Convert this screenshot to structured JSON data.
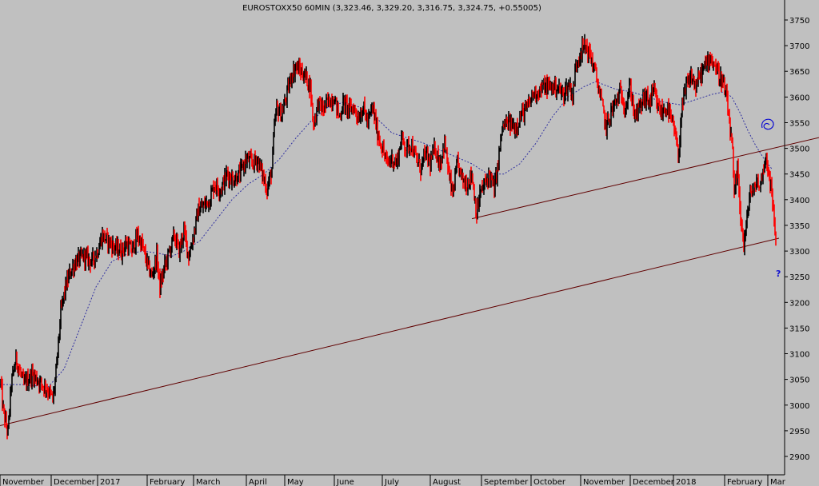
{
  "chart_data": {
    "type": "candlestick",
    "title": "EUROSTOXX50 60MIN (3,323.46, 3,329.20, 3,316.75, 3,324.75, +0.55005)",
    "colors": {
      "background": "#c0c0c0",
      "up_candle": "#000000",
      "down_candle": "#ff0000",
      "moving_average": "#3030a0",
      "trendline": "#600000",
      "annotation": "#1010d0",
      "axis": "#000000"
    },
    "y_axis": {
      "position": "right",
      "ylim": [
        2870,
        3775
      ],
      "ticks": [
        2900,
        2950,
        3000,
        3050,
        3100,
        3150,
        3200,
        3250,
        3300,
        3350,
        3400,
        3450,
        3500,
        3550,
        3600,
        3650,
        3700,
        3750
      ]
    },
    "x_axis": {
      "labels": [
        "November",
        "December",
        "2017",
        "February",
        "March",
        "April",
        "May",
        "June",
        "July",
        "August",
        "September",
        "October",
        "November",
        "December",
        "2018",
        "February",
        "Mar"
      ]
    },
    "anchors": [
      [
        0,
        3060
      ],
      [
        4,
        2990
      ],
      [
        10,
        2945
      ],
      [
        14,
        3040
      ],
      [
        20,
        3090
      ],
      [
        30,
        3040
      ],
      [
        40,
        3060
      ],
      [
        50,
        3045
      ],
      [
        60,
        3030
      ],
      [
        66,
        3010
      ],
      [
        70,
        3060
      ],
      [
        76,
        3180
      ],
      [
        82,
        3230
      ],
      [
        88,
        3260
      ],
      [
        95,
        3280
      ],
      [
        105,
        3290
      ],
      [
        115,
        3280
      ],
      [
        122,
        3300
      ],
      [
        128,
        3330
      ],
      [
        135,
        3320
      ],
      [
        145,
        3305
      ],
      [
        152,
        3300
      ],
      [
        158,
        3315
      ],
      [
        165,
        3300
      ],
      [
        172,
        3330
      ],
      [
        178,
        3310
      ],
      [
        185,
        3270
      ],
      [
        190,
        3250
      ],
      [
        196,
        3290
      ],
      [
        200,
        3230
      ],
      [
        206,
        3270
      ],
      [
        212,
        3300
      ],
      [
        218,
        3330
      ],
      [
        224,
        3300
      ],
      [
        230,
        3340
      ],
      [
        236,
        3290
      ],
      [
        242,
        3330
      ],
      [
        248,
        3380
      ],
      [
        256,
        3390
      ],
      [
        262,
        3400
      ],
      [
        268,
        3430
      ],
      [
        276,
        3420
      ],
      [
        284,
        3450
      ],
      [
        292,
        3440
      ],
      [
        300,
        3450
      ],
      [
        308,
        3480
      ],
      [
        316,
        3470
      ],
      [
        322,
        3480
      ],
      [
        328,
        3450
      ],
      [
        334,
        3420
      ],
      [
        340,
        3460
      ],
      [
        343,
        3540
      ],
      [
        346,
        3580
      ],
      [
        352,
        3565
      ],
      [
        358,
        3600
      ],
      [
        364,
        3640
      ],
      [
        370,
        3660
      ],
      [
        376,
        3650
      ],
      [
        382,
        3640
      ],
      [
        388,
        3620
      ],
      [
        392,
        3545
      ],
      [
        398,
        3590
      ],
      [
        404,
        3575
      ],
      [
        410,
        3590
      ],
      [
        418,
        3600
      ],
      [
        424,
        3560
      ],
      [
        430,
        3590
      ],
      [
        436,
        3575
      ],
      [
        442,
        3580
      ],
      [
        448,
        3560
      ],
      [
        454,
        3580
      ],
      [
        460,
        3550
      ],
      [
        466,
        3580
      ],
      [
        472,
        3530
      ],
      [
        478,
        3500
      ],
      [
        484,
        3470
      ],
      [
        490,
        3480
      ],
      [
        496,
        3470
      ],
      [
        502,
        3520
      ],
      [
        508,
        3500
      ],
      [
        514,
        3510
      ],
      [
        520,
        3480
      ],
      [
        526,
        3460
      ],
      [
        532,
        3490
      ],
      [
        538,
        3470
      ],
      [
        544,
        3500
      ],
      [
        550,
        3470
      ],
      [
        556,
        3510
      ],
      [
        562,
        3440
      ],
      [
        566,
        3410
      ],
      [
        572,
        3470
      ],
      [
        578,
        3440
      ],
      [
        584,
        3430
      ],
      [
        590,
        3450
      ],
      [
        596,
        3370
      ],
      [
        600,
        3410
      ],
      [
        606,
        3430
      ],
      [
        612,
        3450
      ],
      [
        618,
        3420
      ],
      [
        622,
        3460
      ],
      [
        628,
        3540
      ],
      [
        636,
        3550
      ],
      [
        644,
        3540
      ],
      [
        652,
        3565
      ],
      [
        660,
        3580
      ],
      [
        666,
        3605
      ],
      [
        672,
        3610
      ],
      [
        680,
        3620
      ],
      [
        688,
        3620
      ],
      [
        696,
        3620
      ],
      [
        704,
        3605
      ],
      [
        712,
        3625
      ],
      [
        716,
        3600
      ],
      [
        720,
        3660
      ],
      [
        726,
        3690
      ],
      [
        732,
        3700
      ],
      [
        738,
        3680
      ],
      [
        744,
        3650
      ],
      [
        748,
        3620
      ],
      [
        752,
        3590
      ],
      [
        758,
        3540
      ],
      [
        764,
        3570
      ],
      [
        770,
        3590
      ],
      [
        776,
        3610
      ],
      [
        782,
        3580
      ],
      [
        788,
        3620
      ],
      [
        794,
        3560
      ],
      [
        800,
        3580
      ],
      [
        806,
        3600
      ],
      [
        812,
        3590
      ],
      [
        818,
        3610
      ],
      [
        822,
        3580
      ],
      [
        828,
        3570
      ],
      [
        834,
        3580
      ],
      [
        838,
        3560
      ],
      [
        844,
        3530
      ],
      [
        848,
        3480
      ],
      [
        852,
        3570
      ],
      [
        858,
        3620
      ],
      [
        864,
        3640
      ],
      [
        870,
        3620
      ],
      [
        876,
        3645
      ],
      [
        882,
        3660
      ],
      [
        888,
        3680
      ],
      [
        894,
        3660
      ],
      [
        900,
        3640
      ],
      [
        904,
        3625
      ],
      [
        908,
        3600
      ],
      [
        912,
        3550
      ],
      [
        916,
        3490
      ],
      [
        918,
        3400
      ],
      [
        922,
        3460
      ],
      [
        926,
        3370
      ],
      [
        930,
        3310
      ],
      [
        934,
        3360
      ],
      [
        938,
        3420
      ],
      [
        942,
        3410
      ],
      [
        946,
        3440
      ],
      [
        950,
        3420
      ],
      [
        954,
        3460
      ],
      [
        958,
        3480
      ],
      [
        962,
        3450
      ],
      [
        966,
        3390
      ],
      [
        970,
        3325
      ]
    ],
    "moving_average": [
      [
        0,
        3040
      ],
      [
        30,
        3040
      ],
      [
        60,
        3035
      ],
      [
        80,
        3070
      ],
      [
        100,
        3150
      ],
      [
        120,
        3230
      ],
      [
        140,
        3280
      ],
      [
        160,
        3295
      ],
      [
        180,
        3300
      ],
      [
        200,
        3295
      ],
      [
        215,
        3290
      ],
      [
        230,
        3300
      ],
      [
        250,
        3320
      ],
      [
        270,
        3360
      ],
      [
        290,
        3400
      ],
      [
        310,
        3430
      ],
      [
        330,
        3450
      ],
      [
        350,
        3480
      ],
      [
        370,
        3520
      ],
      [
        390,
        3555
      ],
      [
        410,
        3580
      ],
      [
        430,
        3590
      ],
      [
        450,
        3580
      ],
      [
        470,
        3560
      ],
      [
        490,
        3530
      ],
      [
        510,
        3520
      ],
      [
        530,
        3510
      ],
      [
        560,
        3490
      ],
      [
        590,
        3470
      ],
      [
        610,
        3450
      ],
      [
        630,
        3450
      ],
      [
        650,
        3470
      ],
      [
        670,
        3510
      ],
      [
        690,
        3560
      ],
      [
        710,
        3600
      ],
      [
        730,
        3620
      ],
      [
        745,
        3630
      ],
      [
        770,
        3615
      ],
      [
        790,
        3610
      ],
      [
        810,
        3600
      ],
      [
        830,
        3590
      ],
      [
        850,
        3585
      ],
      [
        870,
        3595
      ],
      [
        890,
        3605
      ],
      [
        905,
        3610
      ],
      [
        915,
        3600
      ],
      [
        925,
        3570
      ],
      [
        935,
        3535
      ],
      [
        945,
        3505
      ],
      [
        955,
        3480
      ],
      [
        965,
        3460
      ]
    ],
    "trendlines": [
      [
        [
          590,
          3363
        ],
        [
          1024,
          3521
        ]
      ],
      [
        [
          0,
          2960
        ],
        [
          974,
          3325
        ]
      ]
    ],
    "annotation": "?"
  }
}
